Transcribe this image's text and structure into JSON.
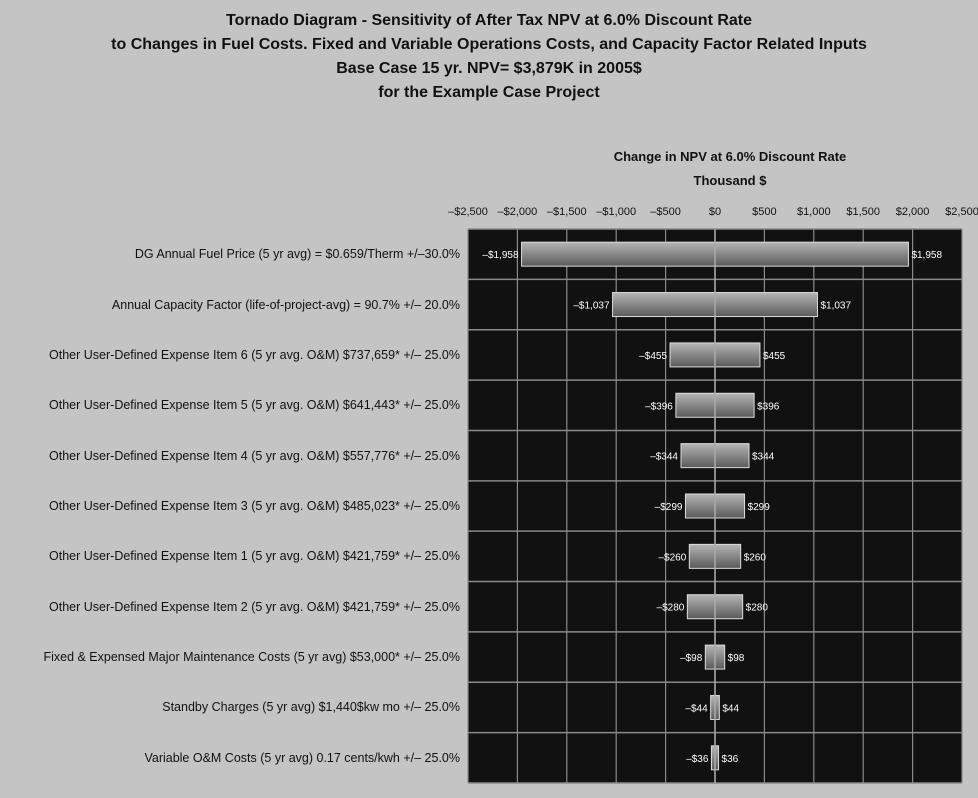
{
  "title_lines": [
    "Tornado Diagram - Sensitivity of After Tax NPV at 6.0% Discount Rate",
    "to Changes in Fuel Costs. Fixed and Variable Operations Costs, and Capacity Factor Related Inputs",
    "Base Case 15 yr. NPV= $3,879K in 2005$",
    "for the Example Case Project"
  ],
  "axis_title_lines": [
    "Change in NPV at 6.0% Discount Rate",
    "Thousand $"
  ],
  "colors": {
    "plot_background": "#111111",
    "grid": "#8a8a8a",
    "bar_fill": "#8c8c8c",
    "bar_edge": "#dcdcdc",
    "bar_label": "#ffffff",
    "page_background": "#c4c4c4"
  },
  "chart_data": {
    "type": "bar",
    "orientation": "horizontal-tornado",
    "xlim": [
      -2500,
      2500
    ],
    "x_ticks": [
      -2500,
      -2000,
      -1500,
      -1000,
      -500,
      0,
      500,
      1000,
      1500,
      2000,
      2500
    ],
    "x_tick_labels": [
      "–$2,500",
      "–$2,000",
      "–$1,500",
      "–$1,000",
      "–$500",
      "$0",
      "$500",
      "$1,000",
      "$1,500",
      "$2,000",
      "$2,500"
    ],
    "x_axis_position": "top",
    "grid": true,
    "categories": [
      "DG Annual Fuel Price (5 yr avg) = $0.659/Therm +/–30.0%",
      "Annual Capacity Factor (life-of-project-avg) = 90.7% +/– 20.0%",
      "Other User-Defined Expense Item 6 (5 yr avg. O&M) $737,659* +/– 25.0%",
      "Other User-Defined Expense Item 5 (5 yr avg. O&M) $641,443* +/– 25.0%",
      "Other User-Defined Expense Item 4 (5 yr avg. O&M) $557,776* +/– 25.0%",
      "Other User-Defined Expense Item 3 (5 yr avg. O&M) $485,023* +/– 25.0%",
      "Other User-Defined Expense Item 1 (5 yr avg. O&M) $421,759* +/– 25.0%",
      "Other User-Defined Expense Item 2 (5 yr avg. O&M) $421,759* +/– 25.0%",
      "Fixed & Expensed Major Maintenance Costs (5 yr avg) $53,000* +/– 25.0%",
      "Standby Charges (5 yr avg) $1,440$kw mo +/– 25.0%",
      "Variable O&M Costs (5 yr avg) 0.17 cents/kwh +/– 25.0%"
    ],
    "low_values": [
      -1958,
      -1037,
      -455,
      -396,
      -344,
      -299,
      -260,
      -280,
      -98,
      -44,
      -36
    ],
    "high_values": [
      1958,
      1037,
      455,
      396,
      344,
      299,
      260,
      280,
      98,
      44,
      36
    ],
    "low_labels": [
      "–$1,958",
      "–$1,037",
      "–$455",
      "–$396",
      "–$344",
      "–$299",
      "–$260",
      "–$280",
      "–$98",
      "–$44",
      "–$36"
    ],
    "high_labels": [
      "$1,958",
      "$1,037",
      "$455",
      "$396",
      "$344",
      "$299",
      "$260",
      "$280",
      "$98",
      "$44",
      "$36"
    ]
  }
}
